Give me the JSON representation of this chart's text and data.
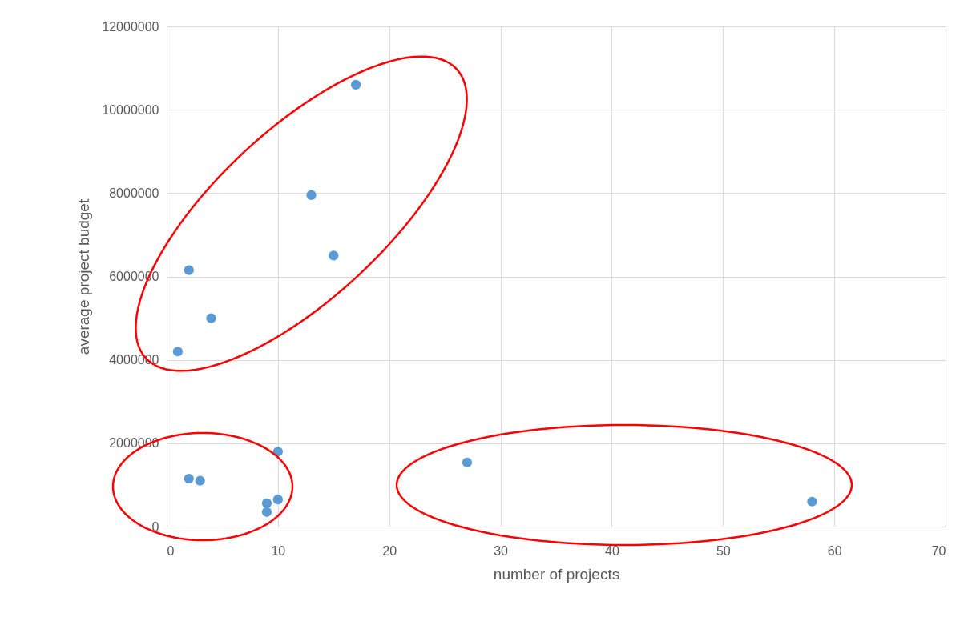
{
  "chart_data": {
    "type": "scatter",
    "xlabel": "number of projects",
    "ylabel": "average project budget",
    "x": [
      17,
      13,
      15,
      2,
      4,
      1,
      10,
      2,
      3,
      27,
      10,
      9,
      9,
      58
    ],
    "series": [
      {
        "color": "#5b9bd5",
        "values": [
          10600000,
          7950000,
          6500000,
          6150000,
          5000000,
          4200000,
          1800000,
          1150000,
          1100000,
          1540000,
          650000,
          560000,
          350000,
          600000
        ]
      }
    ],
    "xlim": [
      0,
      70
    ],
    "xticks": [
      0,
      10,
      20,
      30,
      40,
      50,
      60,
      70
    ],
    "ylim": [
      0,
      12000000
    ],
    "yticks": [
      0,
      2000000,
      4000000,
      6000000,
      8000000,
      10000000,
      12000000
    ],
    "grid": true,
    "marker": "circle"
  }
}
